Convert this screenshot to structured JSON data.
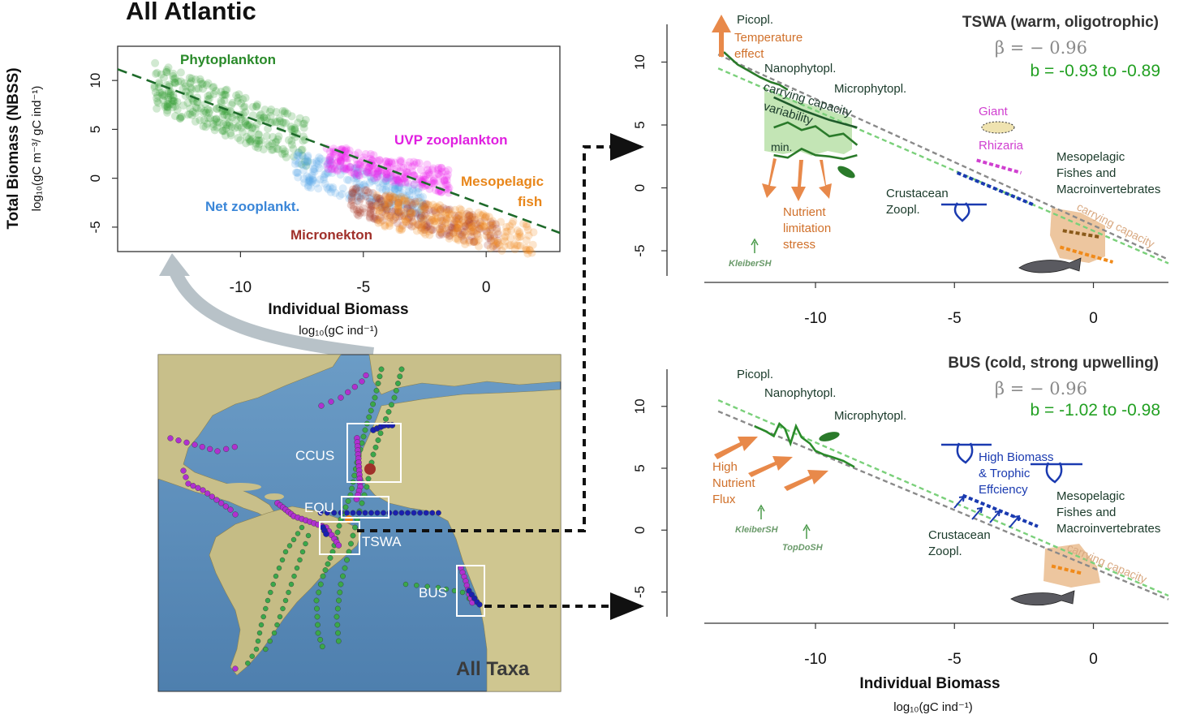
{
  "header": {
    "title": "All Atlantic"
  },
  "map": {
    "label": "All Taxa",
    "regions": [
      "CCUS",
      "EQU",
      "TSWA",
      "BUS"
    ],
    "colors": {
      "ocean": "#5b8fbd",
      "land": "#c9c08a",
      "track_green": "#3aa84a",
      "track_purple": "#b030d0",
      "track_blue": "#1a20b0"
    }
  },
  "chart_data": [
    {
      "id": "all-atlantic",
      "type": "scatter",
      "title": "",
      "xlabel": "Individual Biomass",
      "xunit": "log₁₀(gC ind⁻¹)",
      "ylabel": "Total Biomass (NBSS)",
      "yunit": "log₁₀(gC m⁻³/ gC ind⁻¹)",
      "xlim": [
        -15.0,
        3.0
      ],
      "ylim": [
        -7.5,
        13.5
      ],
      "xticks": [
        -10,
        -5,
        0
      ],
      "yticks": [
        10,
        5,
        0,
        -5
      ],
      "grid": false,
      "fit_line": {
        "slope": -0.93,
        "intercept": -2.8,
        "x": [
          -15,
          3
        ],
        "color": "#1e6a2a"
      },
      "groups": [
        {
          "name": "Phytoplankton",
          "color": "#2e9a2e",
          "x_range": [
            -13.5,
            -7.2
          ],
          "y_center_at_xmin": 9.5,
          "slope": -0.95,
          "spread": 3.0,
          "label_color": "#2a8a2a"
        },
        {
          "name": "UVP zooplankton",
          "color": "#ee22ee",
          "x_range": [
            -6.5,
            -1.5
          ],
          "y_center_at_xmin": 2.2,
          "slope": -0.5,
          "spread": 1.6,
          "label_color": "#e020e0"
        },
        {
          "name": "Net zooplankt.",
          "color": "#5aa8e8",
          "x_range": [
            -7.8,
            -2.5
          ],
          "y_center_at_xmin": 1.2,
          "slope": -0.7,
          "spread": 2.2,
          "label_color": "#3a86d8"
        },
        {
          "name": "Mesopelagic fish",
          "color": "#f08a1a",
          "x_range": [
            -4.5,
            2.0
          ],
          "y_center_at_xmin": -3.0,
          "slope": -0.55,
          "spread": 2.2,
          "label_color": "#e8861a"
        },
        {
          "name": "Micronekton",
          "color": "#a83a2a",
          "x_range": [
            -5.5,
            0.5
          ],
          "y_center_at_xmin": -2.2,
          "slope": -0.6,
          "spread": 1.8,
          "label_color": "#a0302a"
        }
      ]
    },
    {
      "id": "tswa",
      "type": "line",
      "title": "TSWA (warm, oligotrophic)",
      "beta_label": "β = − 0.96",
      "b_label": "b = -0.93 to -0.89",
      "xlim": [
        -14.0,
        2.7
      ],
      "ylim": [
        -7.0,
        13.0
      ],
      "xticks": [
        -10,
        -5,
        0
      ],
      "yticks": [
        10,
        5,
        0,
        -5
      ],
      "grid": false,
      "reference_line": {
        "name": "β",
        "x": [
          -13.5,
          2.7
        ],
        "y": [
          10.6,
          -5.7
        ],
        "color": "#8a8a8a"
      },
      "fit_line": {
        "name": "b",
        "x": [
          -13.5,
          2.7
        ],
        "y": [
          9.5,
          -6.0
        ],
        "color": "#7ad07a"
      },
      "series": [
        {
          "name": "Picopl.",
          "x": [
            -13.3,
            -12.8,
            -12.4,
            -12.0,
            -11.6,
            -11.3,
            -11.0
          ],
          "y": [
            10.8,
            9.8,
            9.3,
            8.8,
            8.4,
            8.2,
            7.8
          ],
          "color": "#2a7a2a"
        },
        {
          "name": "carrying capacity",
          "x": [
            -11.5,
            -10.5,
            -9.5,
            -8.5
          ],
          "y": [
            7.2,
            6.2,
            5.4,
            4.8
          ],
          "color": "#1e5a2a"
        },
        {
          "name": "variability",
          "x": [
            -11.5,
            -11.0,
            -10.5,
            -10.0,
            -9.5,
            -9.0,
            -8.5
          ],
          "y": [
            4.8,
            5.2,
            4.6,
            4.9,
            4.1,
            4.3,
            3.4
          ],
          "color": "#2a7a2a"
        },
        {
          "name": "min.",
          "x": [
            -11.5,
            -11.0,
            -10.5,
            -10.0,
            -9.5,
            -9.0,
            -8.5
          ],
          "y": [
            2.6,
            2.4,
            3.1,
            2.6,
            2.5,
            2.3,
            2.6
          ],
          "color": "#2a7a2a"
        },
        {
          "name": "Crustacean Zoopl.",
          "x": [
            -4.9,
            -2.1
          ],
          "y": [
            1.2,
            -1.4
          ],
          "color": "#1a3ab0"
        },
        {
          "name": "Giant Rhizaria",
          "x": [
            -4.2,
            -2.6
          ],
          "y": [
            2.2,
            1.2
          ],
          "color": "#d040d0"
        },
        {
          "name": "Mesopelagic Fishes and Macroinvertebrates",
          "x": [
            -1.1,
            0.2
          ],
          "y": [
            -3.4,
            -3.9
          ],
          "color": "#8a5a1a"
        },
        {
          "name": "orange",
          "x": [
            -1.2,
            0.7
          ],
          "y": [
            -4.7,
            -5.9
          ],
          "color": "#f08a1a"
        }
      ],
      "labels": {
        "picopl": "Picopl.",
        "temperature_effect_1": "Temperature",
        "temperature_effect_2": "effect",
        "nanophytopl": "Nanophytopl.",
        "microphytopl": "Microphytopl.",
        "carrying_capacity": "carrying capacity",
        "variability": "variability",
        "min": "min.",
        "nutrient_1": "Nutrient",
        "nutrient_2": "limitation",
        "nutrient_3": "stress",
        "giant": "Giant",
        "rhizaria": "Rhizaria",
        "meso_1": "Mesopelagic",
        "meso_2": "Fishes and",
        "meso_3": "Macroinvertebrates",
        "crust_1": "Crustacean",
        "crust_2": "Zoopl.",
        "carrying_capacity_fish": "carrying capacity",
        "kleiber": "KleiberSH"
      }
    },
    {
      "id": "bus",
      "type": "line",
      "title": "BUS (cold, strong upwelling)",
      "beta_label": "β = − 0.96",
      "b_label": "b = -1.02 to -0.98",
      "xlabel": "Individual Biomass",
      "xunit": "log₁₀(gC ind⁻¹)",
      "xlim": [
        -14.0,
        2.7
      ],
      "ylim": [
        -7.0,
        13.0
      ],
      "xticks": [
        -10,
        -5,
        0
      ],
      "yticks": [
        10,
        5,
        0,
        -5
      ],
      "grid": false,
      "reference_line": {
        "name": "β",
        "x": [
          -13.5,
          2.7
        ],
        "y": [
          9.6,
          -5.6
        ],
        "color": "#8a8a8a"
      },
      "fit_line": {
        "name": "b",
        "x": [
          -13.5,
          2.7
        ],
        "y": [
          10.5,
          -5.3
        ],
        "color": "#7ad07a"
      },
      "series": [
        {
          "name": "Phytoplankton",
          "x": [
            -12.2,
            -11.8,
            -11.5,
            -11.3,
            -11.1,
            -10.9,
            -10.7,
            -10.5,
            -10.2,
            -10.0,
            -9.7,
            -9.4,
            -9.0,
            -8.6
          ],
          "y": [
            8.4,
            8.0,
            7.6,
            8.6,
            8.2,
            7.0,
            8.4,
            7.5,
            7.0,
            6.4,
            6.1,
            5.9,
            5.6,
            5.1
          ],
          "color": "#2a8a2a"
        },
        {
          "name": "Crustacean Zoopl.",
          "x": [
            -4.7,
            -2.0
          ],
          "y": [
            2.8,
            0.3
          ],
          "color": "#1a3ab0"
        },
        {
          "name": "Mesopelagic Fishes and Macroinvertebrates",
          "x": [
            -1.5,
            -0.4
          ],
          "y": [
            -2.9,
            -3.5
          ],
          "color": "#f08a1a"
        }
      ],
      "labels": {
        "picopl": "Picopl.",
        "nanophytopl": "Nanophytopl.",
        "microphytopl": "Microphytopl.",
        "high_1": "High",
        "high_2": "Nutrient",
        "high_3": "Flux",
        "hb_1": "High Biomass",
        "hb_2": "& Trophic",
        "hb_3": "Effciency",
        "meso_1": "Mesopelagic",
        "meso_2": "Fishes and",
        "meso_3": "Macroinvertebrates",
        "crust_1": "Crustacean",
        "crust_2": "Zoopl.",
        "carrying_capacity_fish": "carrying capacity",
        "kleiber": "KleiberSH",
        "topdo": "TopDoSH"
      }
    }
  ]
}
